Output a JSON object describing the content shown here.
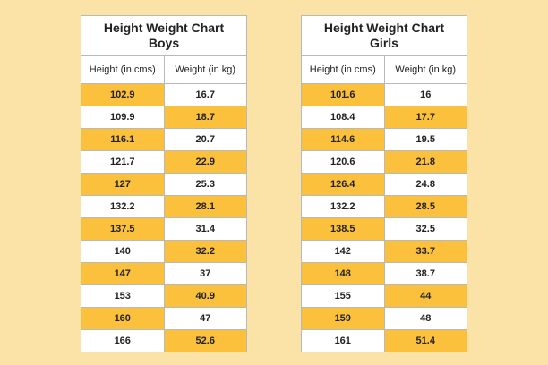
{
  "colors": {
    "background": "#fbe2a6",
    "highlight": "#fbc13d",
    "table_bg": "#ffffff",
    "border": "#b9b9b9"
  },
  "charts": [
    {
      "title_line1": "Height Weight Chart",
      "title_line2": "Boys",
      "col_height": "Height (in cms)",
      "col_weight": "Weight (in kg)",
      "rows": [
        {
          "height": "102.9",
          "weight": "16.7",
          "highlight": "height"
        },
        {
          "height": "109.9",
          "weight": "18.7",
          "highlight": "weight"
        },
        {
          "height": "116.1",
          "weight": "20.7",
          "highlight": "height"
        },
        {
          "height": "121.7",
          "weight": "22.9",
          "highlight": "weight"
        },
        {
          "height": "127",
          "weight": "25.3",
          "highlight": "height"
        },
        {
          "height": "132.2",
          "weight": "28.1",
          "highlight": "weight"
        },
        {
          "height": "137.5",
          "weight": "31.4",
          "highlight": "height"
        },
        {
          "height": "140",
          "weight": "32.2",
          "highlight": "weight"
        },
        {
          "height": "147",
          "weight": "37",
          "highlight": "height"
        },
        {
          "height": "153",
          "weight": "40.9",
          "highlight": "weight"
        },
        {
          "height": "160",
          "weight": "47",
          "highlight": "height"
        },
        {
          "height": "166",
          "weight": "52.6",
          "highlight": "weight"
        }
      ]
    },
    {
      "title_line1": "Height Weight Chart",
      "title_line2": "Girls",
      "col_height": "Height (in cms)",
      "col_weight": "Weight (in kg)",
      "rows": [
        {
          "height": "101.6",
          "weight": "16",
          "highlight": "height"
        },
        {
          "height": "108.4",
          "weight": "17.7",
          "highlight": "weight"
        },
        {
          "height": "114.6",
          "weight": "19.5",
          "highlight": "height"
        },
        {
          "height": "120.6",
          "weight": "21.8",
          "highlight": "weight"
        },
        {
          "height": "126.4",
          "weight": "24.8",
          "highlight": "height"
        },
        {
          "height": "132.2",
          "weight": "28.5",
          "highlight": "weight"
        },
        {
          "height": "138.5",
          "weight": "32.5",
          "highlight": "height"
        },
        {
          "height": "142",
          "weight": "33.7",
          "highlight": "weight"
        },
        {
          "height": "148",
          "weight": "38.7",
          "highlight": "height"
        },
        {
          "height": "155",
          "weight": "44",
          "highlight": "weight"
        },
        {
          "height": "159",
          "weight": "48",
          "highlight": "height"
        },
        {
          "height": "161",
          "weight": "51.4",
          "highlight": "weight"
        }
      ]
    }
  ]
}
